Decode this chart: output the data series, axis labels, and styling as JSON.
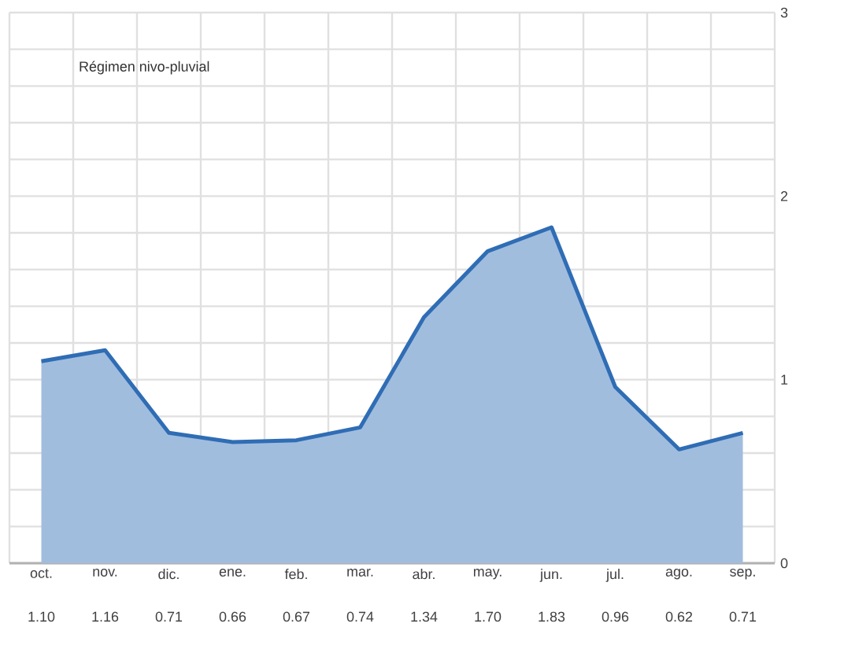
{
  "chart_data": {
    "type": "area",
    "title": "Régimen nivo-pluvial",
    "categories": [
      "oct.",
      "nov.",
      "dic.",
      "ene.",
      "feb.",
      "mar.",
      "abr.",
      "may.",
      "jun.",
      "jul.",
      "ago.",
      "sep."
    ],
    "values": [
      1.1,
      1.16,
      0.71,
      0.66,
      0.67,
      0.74,
      1.34,
      1.7,
      1.83,
      0.96,
      0.62,
      0.71
    ],
    "value_labels": [
      "1.10",
      "1.16",
      "0.71",
      "0.66",
      "0.67",
      "0.74",
      "1.34",
      "1.70",
      "1.83",
      "0.96",
      "0.62",
      "0.71"
    ],
    "color": "#2f6db5",
    "ylim": [
      0,
      3
    ],
    "yticks": [
      0,
      {
        "value": 0.2,
        "label": null
      },
      {
        "value": 0.4,
        "label": null
      },
      {
        "value": 0.6,
        "label": null
      },
      {
        "value": 0.8,
        "label": null
      },
      1,
      {
        "value": 1.2,
        "label": null
      },
      {
        "value": 1.4,
        "label": null
      },
      {
        "value": 1.6,
        "label": null
      },
      {
        "value": 1.8,
        "label": null
      },
      2,
      {
        "value": 2.2,
        "label": null
      },
      {
        "value": 2.4,
        "label": null
      },
      {
        "value": 2.6,
        "label": null
      },
      {
        "value": 2.8,
        "label": null
      },
      3
    ],
    "grid": true,
    "line_style": "solid"
  }
}
